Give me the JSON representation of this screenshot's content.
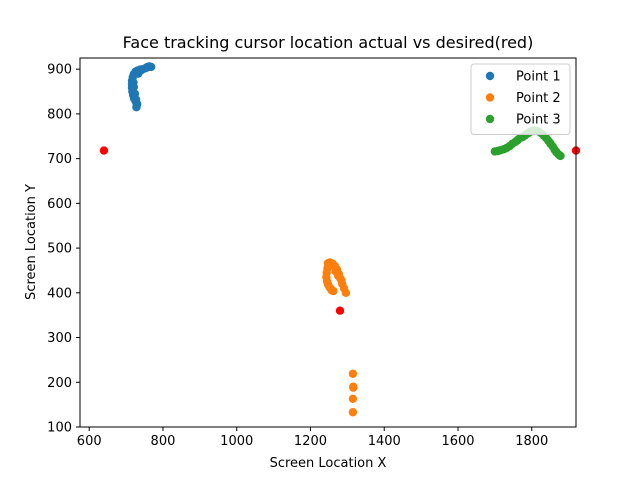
{
  "chart_data": {
    "type": "scatter",
    "title": "Face tracking cursor location actual vs desired(red)",
    "xlabel": "Screen Location X",
    "ylabel": "Screen Location Y",
    "xlim": [
      575,
      1920
    ],
    "ylim": [
      100,
      925
    ],
    "xticks": [
      600,
      800,
      1000,
      1200,
      1400,
      1600,
      1800
    ],
    "yticks": [
      100,
      200,
      300,
      400,
      500,
      600,
      700,
      800,
      900
    ],
    "grid": false,
    "legend_position": "top-right",
    "series": [
      {
        "name": "Point 1",
        "color": "#1f77b4",
        "points": [
          [
            728,
            815
          ],
          [
            730,
            822
          ],
          [
            726,
            828
          ],
          [
            722,
            834
          ],
          [
            719,
            842
          ],
          [
            717,
            850
          ],
          [
            716,
            858
          ],
          [
            716,
            866
          ],
          [
            716,
            874
          ],
          [
            718,
            882
          ],
          [
            721,
            889
          ],
          [
            725,
            894
          ],
          [
            731,
            897
          ],
          [
            738,
            899
          ],
          [
            745,
            900
          ],
          [
            752,
            902
          ],
          [
            758,
            905
          ],
          [
            763,
            906
          ],
          [
            768,
            905
          ],
          [
            733,
            890
          ],
          [
            736,
            895
          ],
          [
            720,
            870
          ],
          [
            721,
            860
          ],
          [
            724,
            845
          ],
          [
            727,
            832
          ],
          [
            729,
            820
          ],
          [
            742,
            898
          ],
          [
            755,
            903
          ]
        ]
      },
      {
        "name": "Point 2",
        "color": "#ff7f0e",
        "points": [
          [
            1247,
            466
          ],
          [
            1253,
            468
          ],
          [
            1260,
            465
          ],
          [
            1266,
            460
          ],
          [
            1272,
            452
          ],
          [
            1277,
            442
          ],
          [
            1281,
            432
          ],
          [
            1286,
            420
          ],
          [
            1291,
            410
          ],
          [
            1296,
            400
          ],
          [
            1246,
            455
          ],
          [
            1244,
            445
          ],
          [
            1243,
            435
          ],
          [
            1245,
            425
          ],
          [
            1248,
            418
          ],
          [
            1252,
            412
          ],
          [
            1256,
            408
          ],
          [
            1258,
            405
          ],
          [
            1262,
            404
          ],
          [
            1250,
            460
          ],
          [
            1268,
            448
          ],
          [
            1275,
            438
          ],
          [
            1284,
            428
          ],
          [
            1315,
            219
          ],
          [
            1316,
            190
          ],
          [
            1316,
            188
          ],
          [
            1315,
            163
          ],
          [
            1315,
            133
          ]
        ]
      },
      {
        "name": "Point 3",
        "color": "#2ca02c",
        "points": [
          [
            1700,
            716
          ],
          [
            1708,
            717
          ],
          [
            1716,
            719
          ],
          [
            1724,
            721
          ],
          [
            1732,
            724
          ],
          [
            1740,
            728
          ],
          [
            1747,
            733
          ],
          [
            1755,
            737
          ],
          [
            1762,
            742
          ],
          [
            1768,
            746
          ],
          [
            1775,
            748
          ],
          [
            1782,
            752
          ],
          [
            1788,
            756
          ],
          [
            1794,
            759
          ],
          [
            1800,
            762
          ],
          [
            1807,
            763
          ],
          [
            1814,
            762
          ],
          [
            1820,
            760
          ],
          [
            1827,
            756
          ],
          [
            1833,
            751
          ],
          [
            1839,
            746
          ],
          [
            1845,
            740
          ],
          [
            1851,
            733
          ],
          [
            1857,
            727
          ],
          [
            1862,
            720
          ],
          [
            1867,
            714
          ],
          [
            1872,
            710
          ],
          [
            1876,
            707
          ],
          [
            1878,
            706
          ],
          [
            1712,
            718
          ],
          [
            1760,
            740
          ],
          [
            1790,
            757
          ],
          [
            1850,
            735
          ],
          [
            1866,
            716
          ]
        ]
      },
      {
        "name": "",
        "color": "#ff0000",
        "points": [
          [
            640,
            718
          ],
          [
            1280,
            360
          ],
          [
            1920,
            718
          ]
        ]
      }
    ]
  }
}
